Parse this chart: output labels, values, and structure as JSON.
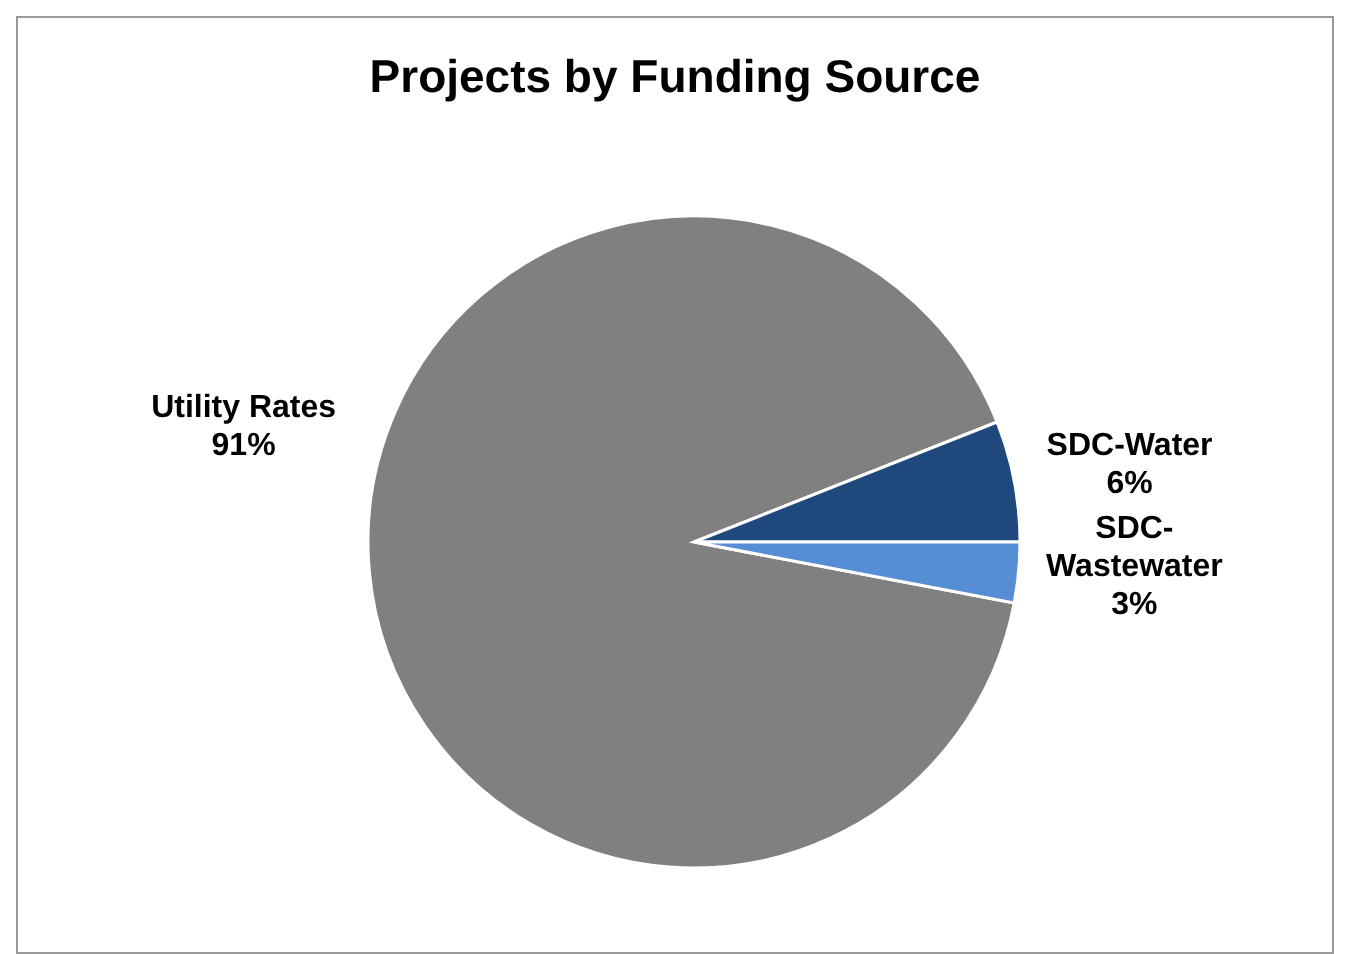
{
  "chart_data": {
    "type": "pie",
    "title": "Projects by Funding Source",
    "categories": [
      "Utility Rates",
      "SDC-Water",
      "SDC-Wastewater"
    ],
    "values": [
      91,
      6,
      3
    ],
    "value_labels": [
      "91%",
      "6%",
      "3%"
    ],
    "colors": [
      "#808080",
      "#1f497d",
      "#558ed5"
    ],
    "legend": false
  }
}
